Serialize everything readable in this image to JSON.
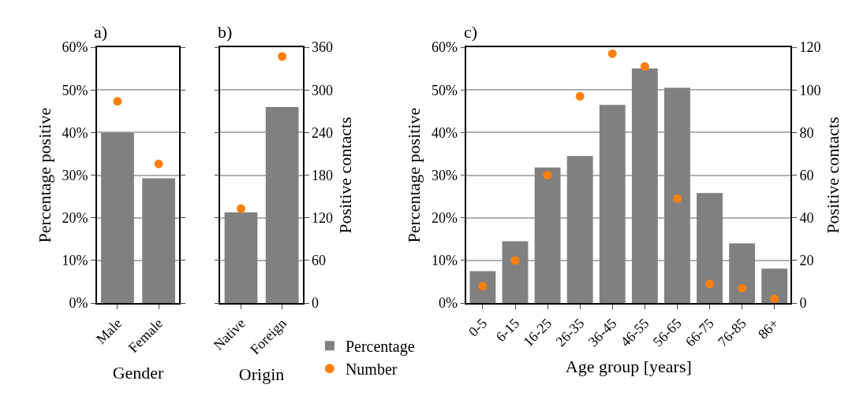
{
  "chart_data": [
    {
      "type": "bar",
      "title": "a)",
      "xlabel": "Gender",
      "ylabel": "Percentage positive",
      "categories": [
        "Male",
        "Female"
      ],
      "series": [
        {
          "color": "#808080",
          "values": [
            40.0,
            29.3
          ]
        },
        {
          "type": "scatter",
          "axis": "y2",
          "color": "#ff7f0e",
          "marker": "circle",
          "values": [
            284,
            196
          ]
        }
      ],
      "ylim": [
        0,
        60
      ],
      "yticks": [
        {
          "value": 0,
          "label": "0%"
        },
        {
          "value": 10,
          "label": "10%"
        },
        {
          "value": 20,
          "label": "20%"
        },
        {
          "value": 30,
          "label": "30%"
        },
        {
          "value": 40,
          "label": "40%"
        },
        {
          "value": 50,
          "label": "50%"
        },
        {
          "value": 60,
          "label": "60%"
        }
      ],
      "y2lim": [
        0,
        360
      ],
      "grid": "y",
      "tick_labels": [
        "x",
        "y"
      ]
    },
    {
      "type": "bar",
      "title": "b)",
      "xlabel": "Origin",
      "y2label": "Positive contacts",
      "categories": [
        "Native",
        "Foreign"
      ],
      "series": [
        {
          "name": "Percentage",
          "color": "#808080",
          "values": [
            21.3,
            46.0
          ]
        },
        {
          "type": "scatter",
          "name": "Number",
          "axis": "y2",
          "color": "#ff7f0e",
          "marker": "circle",
          "values": [
            133,
            347
          ]
        }
      ],
      "ylim": [
        0,
        60
      ],
      "y2lim": [
        0,
        360
      ],
      "y2ticks": [
        0,
        60,
        120,
        180,
        240,
        300,
        360
      ],
      "grid": "y",
      "legend": "bottom",
      "tick_labels": [
        "x",
        "y2"
      ]
    },
    {
      "type": "bar",
      "title": "c)",
      "xlabel": "Age group [years]",
      "ylabel": "Percentage positive",
      "y2label": "Positive contacts",
      "categories": [
        "0-5",
        "6-15",
        "16-25",
        "26-35",
        "36-45",
        "46-55",
        "56-65",
        "66-75",
        "76-85",
        "86+"
      ],
      "series": [
        {
          "color": "#808080",
          "values": [
            7.5,
            14.5,
            31.8,
            34.5,
            46.5,
            55.0,
            50.5,
            25.8,
            14.0,
            8.1
          ]
        },
        {
          "type": "scatter",
          "axis": "y2",
          "color": "#ff7f0e",
          "marker": "circle",
          "values": [
            8,
            20,
            60,
            97,
            117,
            111,
            49,
            9,
            7,
            2
          ]
        }
      ],
      "ylim": [
        0,
        60
      ],
      "yticks": [
        {
          "value": 0,
          "label": "0%"
        },
        {
          "value": 10,
          "label": "10%"
        },
        {
          "value": 20,
          "label": "20%"
        },
        {
          "value": 30,
          "label": "30%"
        },
        {
          "value": 40,
          "label": "40%"
        },
        {
          "value": 50,
          "label": "50%"
        },
        {
          "value": 60,
          "label": "60%"
        }
      ],
      "y2lim": [
        0,
        120
      ],
      "y2ticks": [
        0,
        20,
        40,
        60,
        80,
        100,
        120
      ],
      "grid": "y"
    }
  ]
}
